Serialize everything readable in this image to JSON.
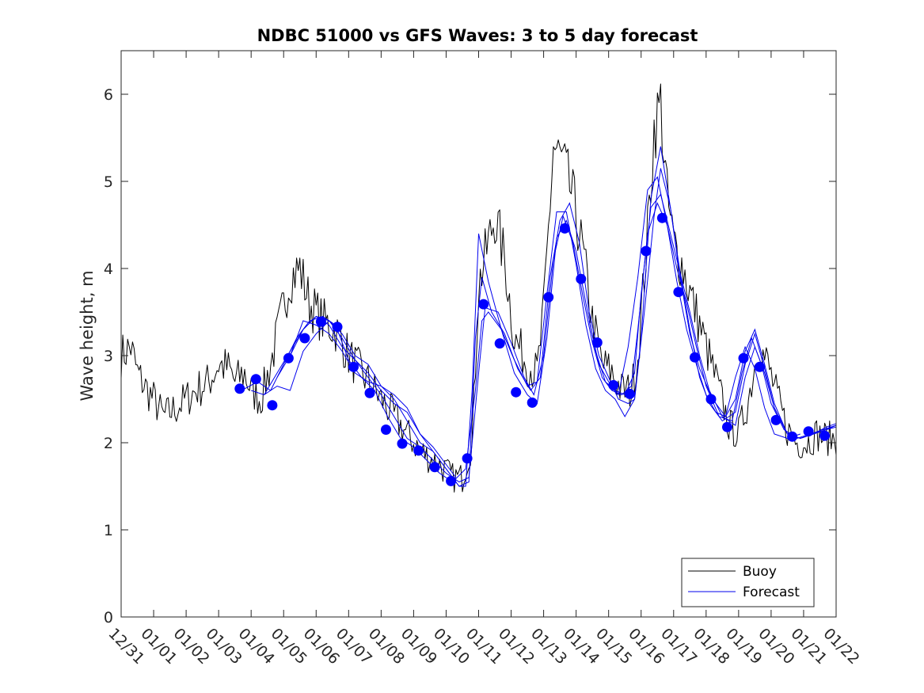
{
  "chart_data": {
    "type": "line",
    "title": "NDBC 51000 vs GFS Waves: 3 to 5 day forecast",
    "xlabel": "",
    "ylabel": "Wave height, m",
    "xlim": [
      0,
      22
    ],
    "ylim": [
      0,
      6.5
    ],
    "yticks": [
      0,
      1,
      2,
      3,
      4,
      5,
      6
    ],
    "ytick_labels": [
      "0",
      "1",
      "2",
      "3",
      "4",
      "5",
      "6"
    ],
    "xticks": [
      0,
      1,
      2,
      3,
      4,
      5,
      6,
      7,
      8,
      9,
      10,
      11,
      12,
      13,
      14,
      15,
      16,
      17,
      18,
      19,
      20,
      21,
      22
    ],
    "xtick_labels": [
      "12/31",
      "01/01",
      "01/02",
      "01/03",
      "01/04",
      "01/05",
      "01/06",
      "01/07",
      "01/08",
      "01/09",
      "01/10",
      "01/11",
      "01/12",
      "01/13",
      "01/14",
      "01/15",
      "01/16",
      "01/17",
      "01/18",
      "01/19",
      "01/20",
      "01/21",
      "01/22"
    ],
    "x_units": "days since 12/31",
    "legend": {
      "position": "bottom-right",
      "entries": [
        "Buoy",
        "Forecast"
      ]
    },
    "colors": {
      "buoy": "#000000",
      "forecast": "#0000ee",
      "markers": "#0000ff",
      "axis": "#262626"
    },
    "buoy_anchor": {
      "x": [
        0.0,
        0.3,
        0.5,
        0.8,
        1.0,
        1.3,
        1.7,
        2.0,
        2.3,
        2.7,
        3.0,
        3.3,
        3.5,
        3.8,
        4.0,
        4.3,
        4.6,
        4.9,
        5.2,
        5.5,
        5.8,
        6.2,
        6.6,
        7.0,
        7.4,
        7.8,
        8.2,
        8.6,
        9.0,
        9.4,
        9.8,
        10.2,
        10.5,
        10.8,
        11.0,
        11.3,
        11.5,
        11.8,
        12.1,
        12.5,
        12.8,
        13.0,
        13.3,
        13.6,
        13.9,
        14.2,
        14.5,
        14.8,
        15.1,
        15.4,
        15.7,
        15.9,
        16.2,
        16.4,
        16.6,
        16.8,
        17.0,
        17.3,
        17.6,
        18.0,
        18.4,
        18.7,
        19.0,
        19.3,
        19.6,
        19.9,
        20.2,
        20.5,
        20.8,
        21.1,
        21.4,
        21.7,
        22.0
      ],
      "y": [
        3.0,
        3.1,
        2.8,
        2.6,
        2.5,
        2.3,
        2.4,
        2.5,
        2.6,
        2.7,
        2.9,
        2.85,
        2.7,
        2.8,
        2.6,
        2.5,
        2.9,
        3.4,
        3.9,
        4.0,
        3.6,
        3.4,
        3.3,
        3.0,
        2.8,
        2.6,
        2.4,
        2.2,
        2.0,
        1.85,
        1.75,
        1.6,
        1.6,
        2.0,
        3.8,
        4.3,
        4.6,
        4.1,
        3.2,
        2.9,
        2.8,
        3.5,
        5.4,
        5.2,
        4.8,
        4.2,
        3.4,
        2.9,
        2.8,
        2.6,
        2.6,
        3.0,
        4.4,
        5.6,
        5.9,
        4.8,
        4.3,
        4.0,
        3.6,
        3.1,
        2.6,
        2.2,
        2.1,
        2.5,
        3.1,
        2.9,
        2.5,
        2.15,
        2.0,
        2.0,
        2.1,
        2.05,
        2.05
      ]
    },
    "buoy_series_note": "Buoy trace is drawn at 0.05-day resolution around these anchor values with observation noise",
    "forecast_runs": [
      {
        "name": "run-1",
        "x": [
          3.8,
          4.2,
          4.6,
          5.0,
          5.4,
          5.8,
          6.2,
          6.6,
          7.0,
          7.4,
          7.8,
          8.2,
          8.6,
          9.0,
          9.4,
          9.8,
          10.2,
          10.6,
          10.9,
          11.1,
          11.3,
          11.7,
          12.1,
          12.5,
          12.8,
          13.1,
          13.4,
          13.7,
          14.0,
          14.3,
          14.6,
          14.9,
          15.2,
          15.5,
          15.8,
          16.0,
          16.3,
          16.6,
          16.9,
          17.2,
          17.5,
          17.8,
          18.1,
          18.5,
          18.9,
          19.2,
          19.5,
          19.8,
          20.1,
          20.5,
          20.9,
          21.3,
          21.7,
          22.0
        ],
        "y": [
          2.62,
          2.7,
          2.6,
          2.9,
          3.2,
          3.4,
          3.45,
          3.35,
          2.95,
          2.75,
          2.6,
          2.3,
          2.05,
          1.95,
          1.8,
          1.65,
          1.55,
          1.7,
          2.6,
          3.4,
          3.5,
          3.3,
          2.8,
          2.55,
          2.45,
          3.2,
          4.35,
          4.55,
          4.2,
          3.6,
          3.05,
          2.7,
          2.6,
          2.55,
          2.8,
          3.7,
          4.7,
          4.85,
          4.4,
          3.95,
          3.5,
          3.0,
          2.6,
          2.3,
          2.2,
          2.75,
          3.1,
          2.8,
          2.4,
          2.1,
          2.05,
          2.1,
          2.15,
          2.2
        ]
      },
      {
        "name": "run-2",
        "x": [
          4.4,
          4.8,
          5.2,
          5.6,
          6.0,
          6.4,
          6.8,
          7.2,
          7.6,
          8.0,
          8.4,
          8.8,
          9.2,
          9.6,
          10.0,
          10.4,
          10.7,
          11.0,
          11.2,
          11.6,
          12.0,
          12.4,
          12.7,
          13.0,
          13.3,
          13.6,
          13.9,
          14.2,
          14.5,
          14.8,
          15.1,
          15.4,
          15.7,
          15.9,
          16.2,
          16.5,
          16.8,
          17.1,
          17.4,
          17.7,
          18.0,
          18.4,
          18.8,
          19.1,
          19.4,
          19.7,
          20.0,
          20.4,
          20.8,
          21.2,
          21.6,
          22.0
        ],
        "y": [
          2.55,
          2.8,
          3.05,
          3.3,
          3.45,
          3.4,
          3.2,
          2.95,
          2.75,
          2.55,
          2.3,
          2.05,
          1.95,
          1.8,
          1.65,
          1.55,
          1.6,
          2.8,
          3.55,
          3.5,
          3.15,
          2.75,
          2.55,
          3.0,
          4.1,
          4.6,
          4.3,
          3.7,
          3.15,
          2.75,
          2.6,
          2.55,
          2.65,
          3.3,
          4.4,
          4.75,
          4.5,
          4.0,
          3.6,
          3.1,
          2.65,
          2.3,
          2.25,
          2.8,
          3.2,
          2.9,
          2.45,
          2.15,
          2.05,
          2.1,
          2.15,
          2.2
        ]
      },
      {
        "name": "run-3",
        "x": [
          4.8,
          5.2,
          5.6,
          6.0,
          6.4,
          6.8,
          7.2,
          7.6,
          8.0,
          8.4,
          8.8,
          9.2,
          9.6,
          10.0,
          10.4,
          10.7,
          10.9,
          11.1,
          11.4,
          11.8,
          12.2,
          12.6,
          12.9,
          13.2,
          13.5,
          13.8,
          14.1,
          14.4,
          14.7,
          15.0,
          15.3,
          15.6,
          15.8,
          16.1,
          16.4,
          16.6,
          16.9,
          17.2,
          17.5,
          17.8,
          18.1,
          18.5,
          18.9,
          19.2,
          19.5,
          19.8,
          20.1,
          20.5,
          20.9,
          21.3,
          21.7,
          22.0
        ],
        "y": [
          2.75,
          3.0,
          3.4,
          3.35,
          3.25,
          3.05,
          2.8,
          2.7,
          2.65,
          2.5,
          2.25,
          2.0,
          1.9,
          1.7,
          1.5,
          1.55,
          3.2,
          3.9,
          3.5,
          3.25,
          2.85,
          2.6,
          2.75,
          3.9,
          4.55,
          4.75,
          4.3,
          3.5,
          3.0,
          2.75,
          2.5,
          2.45,
          2.5,
          3.5,
          4.6,
          5.15,
          4.7,
          3.95,
          3.3,
          2.75,
          2.45,
          2.25,
          2.35,
          2.9,
          3.25,
          2.85,
          2.4,
          2.1,
          2.05,
          2.1,
          2.15,
          2.18
        ]
      },
      {
        "name": "run-4",
        "x": [
          5.2,
          5.6,
          6.0,
          6.4,
          6.8,
          7.2,
          7.6,
          8.0,
          8.4,
          8.8,
          9.2,
          9.6,
          10.0,
          10.4,
          10.6,
          10.8,
          11.0,
          11.3,
          11.7,
          12.1,
          12.5,
          12.8,
          13.1,
          13.4,
          13.7,
          14.0,
          14.3,
          14.6,
          14.9,
          15.2,
          15.5,
          15.8,
          16.0,
          16.3,
          16.6,
          16.9,
          17.2,
          17.5,
          17.8,
          18.2,
          18.6,
          18.9,
          19.2,
          19.5,
          19.8,
          20.1,
          20.5,
          20.9,
          21.3,
          21.7,
          22.0
        ],
        "y": [
          3.0,
          3.3,
          3.45,
          3.35,
          3.1,
          2.95,
          2.8,
          2.6,
          2.45,
          2.35,
          2.1,
          1.9,
          1.7,
          1.5,
          1.5,
          2.6,
          4.4,
          3.85,
          3.3,
          2.95,
          2.65,
          2.7,
          3.7,
          4.65,
          4.65,
          4.05,
          3.35,
          2.85,
          2.6,
          2.5,
          2.3,
          2.5,
          3.2,
          4.8,
          5.4,
          4.7,
          3.9,
          3.25,
          2.85,
          2.5,
          2.3,
          2.5,
          3.05,
          3.3,
          2.9,
          2.45,
          2.1,
          2.05,
          2.1,
          2.18,
          2.22
        ]
      },
      {
        "name": "run-5",
        "x": [
          4.0,
          4.4,
          4.8,
          5.2,
          5.6,
          6.0,
          6.4,
          6.8,
          7.2,
          7.6,
          8.0,
          8.4,
          8.8,
          9.2,
          9.6,
          10.0,
          10.3
        ],
        "y": [
          2.6,
          2.55,
          2.65,
          2.6,
          3.05,
          3.25,
          3.4,
          3.25,
          3.0,
          2.9,
          2.65,
          2.55,
          2.4,
          2.1,
          1.95,
          1.75,
          1.6
        ]
      },
      {
        "name": "run-6",
        "x": [
          14.4,
          14.7,
          15.0,
          15.3,
          15.6,
          15.9,
          16.2,
          16.5,
          16.8,
          17.1,
          17.4,
          17.7,
          18.0,
          18.3,
          18.6,
          18.9,
          19.2,
          19.5,
          19.8,
          20.1,
          20.5,
          20.9
        ],
        "y": [
          3.4,
          2.9,
          2.7,
          2.55,
          3.1,
          3.9,
          4.9,
          5.05,
          4.5,
          3.85,
          3.3,
          2.9,
          2.55,
          2.35,
          2.3,
          2.75,
          3.1,
          2.85,
          2.4,
          2.1,
          2.05,
          2.1
        ]
      }
    ],
    "forecast_markers": {
      "x": [
        3.65,
        4.15,
        4.65,
        5.15,
        5.65,
        6.15,
        6.65,
        7.15,
        7.65,
        8.15,
        8.65,
        9.15,
        9.65,
        10.15,
        10.65,
        11.15,
        11.65,
        12.15,
        12.65,
        13.15,
        13.65,
        14.15,
        14.65,
        15.15,
        15.65,
        16.15,
        16.65,
        17.15,
        17.65,
        18.15,
        18.65,
        19.15,
        19.65,
        20.15,
        20.65,
        21.15,
        21.65
      ],
      "y": [
        2.62,
        2.73,
        2.43,
        2.97,
        3.2,
        3.39,
        3.33,
        2.87,
        2.57,
        2.15,
        1.99,
        1.91,
        1.72,
        1.56,
        1.82,
        3.59,
        3.14,
        2.58,
        2.46,
        3.67,
        4.46,
        3.88,
        3.15,
        2.66,
        2.56,
        4.2,
        4.58,
        3.73,
        2.98,
        2.5,
        2.18,
        2.97,
        2.87,
        2.26,
        2.07,
        2.13,
        2.08
      ]
    }
  }
}
